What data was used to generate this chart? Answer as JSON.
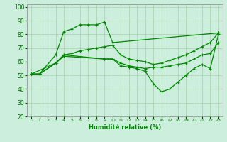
{
  "xlabel": "Humidité relative (%)",
  "background_color": "#cceedd",
  "grid_color": "#aaccaa",
  "line_color": "#008800",
  "xlim": [
    -0.5,
    23.5
  ],
  "ylim": [
    20,
    102
  ],
  "xticks": [
    0,
    1,
    2,
    3,
    4,
    5,
    6,
    7,
    8,
    9,
    10,
    11,
    12,
    13,
    14,
    15,
    16,
    17,
    18,
    19,
    20,
    21,
    22,
    23
  ],
  "yticks": [
    20,
    30,
    40,
    50,
    60,
    70,
    80,
    90,
    100
  ],
  "series": [
    {
      "x": [
        0,
        1,
        3,
        4,
        5,
        6,
        7,
        8,
        9,
        10,
        23
      ],
      "y": [
        51,
        51,
        65,
        82,
        84,
        87,
        87,
        87,
        89,
        74,
        81
      ]
    },
    {
      "x": [
        0,
        1,
        3,
        4,
        5,
        6,
        7,
        8,
        9,
        10,
        11,
        12,
        13,
        14,
        15,
        16,
        17,
        18,
        19,
        20,
        21,
        22,
        23
      ],
      "y": [
        51,
        51,
        59,
        65,
        66,
        68,
        69,
        70,
        71,
        72,
        65,
        62,
        61,
        60,
        58,
        59,
        61,
        63,
        65,
        68,
        71,
        74,
        81
      ]
    },
    {
      "x": [
        0,
        1,
        3,
        4,
        9,
        10,
        11,
        12,
        13,
        14,
        15,
        16,
        17,
        18,
        19,
        20,
        21,
        22,
        23
      ],
      "y": [
        51,
        51,
        59,
        64,
        62,
        62,
        59,
        57,
        56,
        55,
        56,
        56,
        57,
        58,
        59,
        62,
        65,
        66,
        74
      ]
    },
    {
      "x": [
        0,
        3,
        4,
        9,
        10,
        11,
        12,
        13,
        14,
        15,
        16,
        17,
        18,
        19,
        20,
        21,
        22,
        23
      ],
      "y": [
        51,
        59,
        65,
        62,
        62,
        57,
        56,
        55,
        53,
        44,
        38,
        40,
        45,
        50,
        55,
        58,
        55,
        80
      ]
    }
  ]
}
